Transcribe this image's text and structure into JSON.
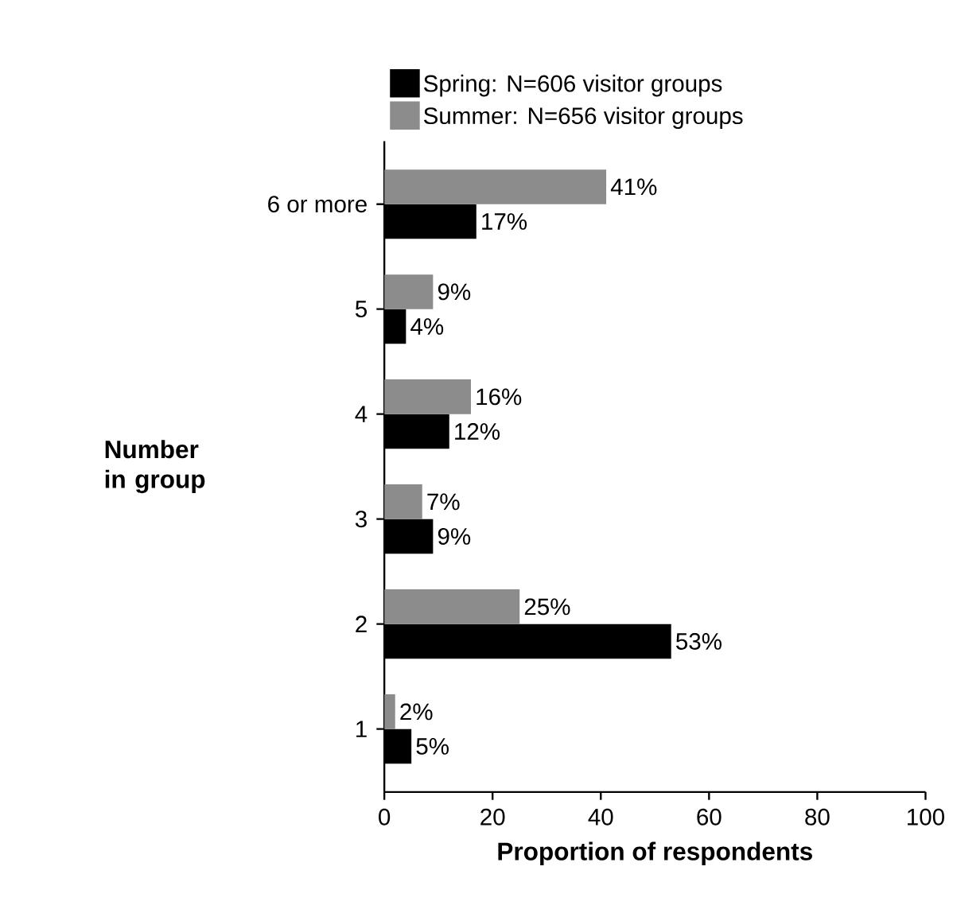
{
  "chart_data": {
    "type": "bar",
    "orientation": "horizontal",
    "xlabel": "Proportion of respondents",
    "ylabel": "Number in group",
    "categories": [
      "6 or more",
      "5",
      "4",
      "3",
      "2",
      "1"
    ],
    "series": [
      {
        "name": "Spring: N=606 visitor groups",
        "color": "#000000",
        "values": [
          17,
          4,
          12,
          9,
          53,
          5
        ],
        "value_labels": [
          "17%",
          "4%",
          "12%",
          "9%",
          "53%",
          "5%"
        ]
      },
      {
        "name": "Summer: N=656 visitor groups",
        "color": "#8c8c8c",
        "values": [
          41,
          9,
          16,
          7,
          25,
          2
        ],
        "value_labels": [
          "41%",
          "9%",
          "16%",
          "7%",
          "25%",
          "2%"
        ]
      }
    ],
    "xlim": [
      0,
      100
    ],
    "xticks": [
      0,
      20,
      40,
      60,
      80,
      100
    ],
    "grid": false,
    "legend": "top"
  }
}
